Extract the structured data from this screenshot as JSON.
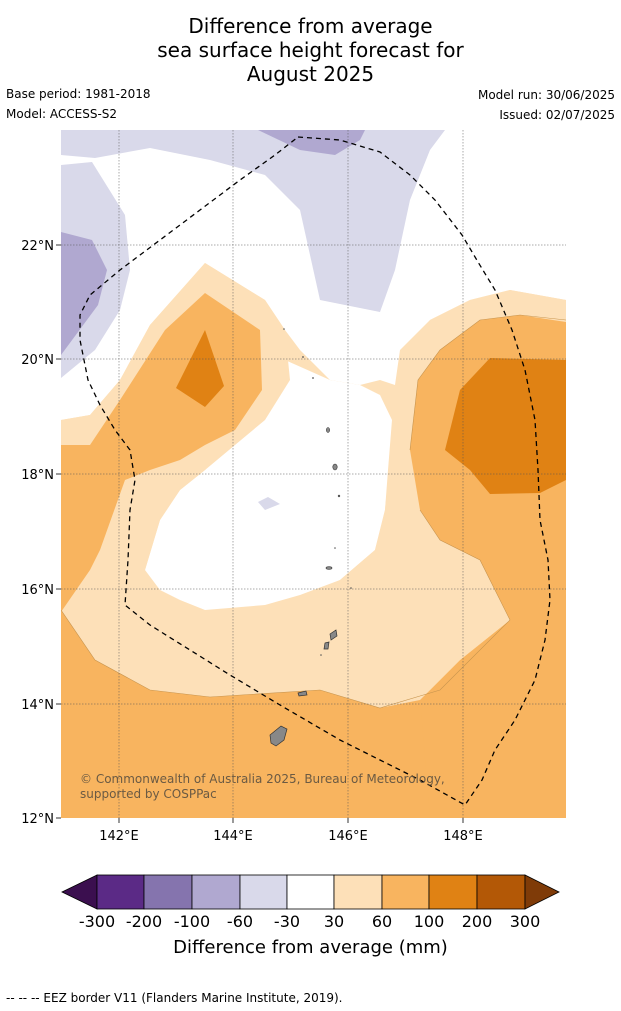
{
  "title": {
    "line1": "Difference from average",
    "line2": "sea surface height forecast for",
    "line3": "August 2025"
  },
  "meta": {
    "base_period": "Base period: 1981-2018",
    "model": "Model: ACCESS-S2",
    "model_run": "Model run: 30/06/2025",
    "issued": "Issued: 02/07/2025"
  },
  "map": {
    "lat_ticks": [
      "22°N",
      "20°N",
      "18°N",
      "16°N",
      "14°N",
      "12°N"
    ],
    "lon_ticks": [
      "142°E",
      "144°E",
      "146°E",
      "148°E"
    ],
    "credit": "© Commonwealth of Australia 2025, Bureau of Meteorology, supported by COSPPac",
    "overlay": "EEZ border (dashed)"
  },
  "colorbar": {
    "title": "Difference from average (mm)",
    "labels": [
      "-300",
      "-200",
      "-100",
      "-60",
      "-30",
      "30",
      "60",
      "100",
      "200",
      "300"
    ],
    "colors": [
      "#3b0f4f",
      "#5b2a86",
      "#8574ae",
      "#b0a8d0",
      "#d9d9ea",
      "#ffffff",
      "#fde0b8",
      "#f8b45f",
      "#e08214",
      "#b35806",
      "#7f3b08"
    ]
  },
  "footnote": "--  --  -- EEZ border V11 (Flanders Marine Institute, 2019)."
}
